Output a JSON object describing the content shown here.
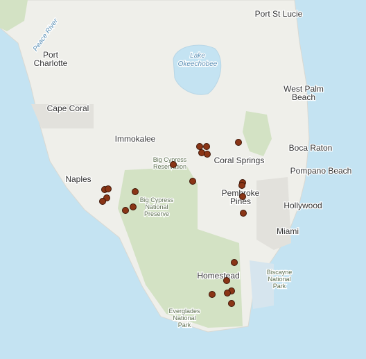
{
  "labels": {
    "port_st_lucie": "Port St Lucie",
    "port_charlotte": [
      "Port",
      "Charlotte"
    ],
    "peace_river": "Peace River",
    "lake_okeechobee": [
      "Lake",
      "Okeechobee"
    ],
    "west_palm_beach": [
      "West Palm",
      "Beach"
    ],
    "cape_coral": "Cape Coral",
    "immokalee": "Immokalee",
    "boca_raton": "Boca Raton",
    "big_cypress_reservation": [
      "Big Cypress",
      "Reservation"
    ],
    "coral_springs": "Coral Springs",
    "pompano_beach": "Pompano Beach",
    "naples": "Naples",
    "pembroke_pines": [
      "Pembroke",
      "Pines"
    ],
    "hollywood": "Hollywood",
    "big_cypress_preserve": [
      "Big Cypress",
      "National",
      "Preserve"
    ],
    "miami": "Miami",
    "homestead": "Homestead",
    "biscayne": [
      "Biscayne",
      "National",
      "Park"
    ],
    "everglades": [
      "Everglades",
      "National",
      "Park"
    ]
  }
}
